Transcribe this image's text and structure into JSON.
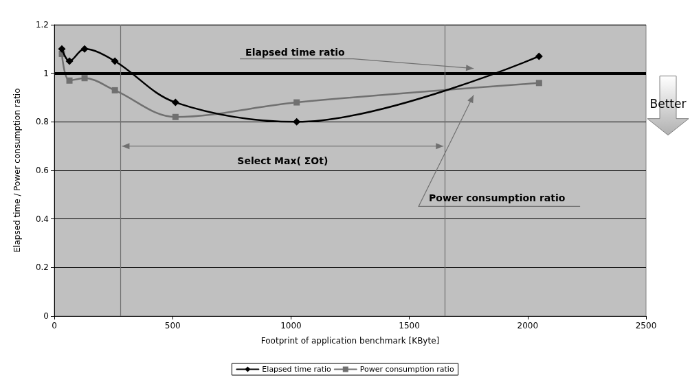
{
  "chart_data": {
    "type": "line",
    "xlabel": "Footprint of application benchmark [KByte]",
    "ylabel": "Elapsed time / Power consumption ratio",
    "xlim": [
      0,
      2500
    ],
    "xticks": [
      0,
      500,
      1000,
      1500,
      2000,
      2500
    ],
    "ylim": [
      0,
      1.2
    ],
    "yticks": [
      0,
      0.2,
      0.4,
      0.6,
      0.8,
      1,
      1.2
    ],
    "grid": "y",
    "legend": "bottom",
    "x": [
      32,
      64,
      128,
      256,
      512,
      1024,
      2048
    ],
    "series": [
      {
        "name": "Elapsed time ratio",
        "color": "#000000",
        "marker": "diamond",
        "values": [
          1.1,
          1.05,
          1.1,
          1.05,
          0.88,
          0.8,
          1.07
        ]
      },
      {
        "name": "Power consumption ratio",
        "color": "#707070",
        "marker": "square",
        "values": [
          1.08,
          0.97,
          0.98,
          0.93,
          0.82,
          0.88,
          0.96
        ]
      }
    ],
    "ref_lines": [
      {
        "axis": "y",
        "value": 1,
        "color": "#000000"
      },
      {
        "axis": "x",
        "value": 280,
        "color": "#707070"
      },
      {
        "axis": "x",
        "value": 1650,
        "color": "#707070"
      }
    ],
    "annotations": [
      "Elapsed time ratio",
      "Power consumption ratio",
      "Select Max( ΣOt)",
      "Better"
    ]
  }
}
